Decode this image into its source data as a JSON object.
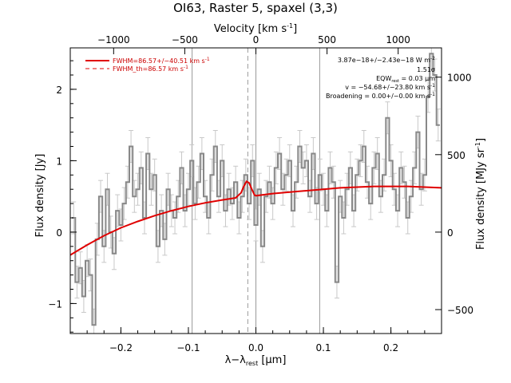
{
  "chart_data": {
    "type": "line",
    "title": "OI63, Raster 5, spaxel (3,3)",
    "xlabel_main": "λ−λ",
    "xlabel_sub": "rest",
    "xlabel_unit": " [μm]",
    "ylabel_left": "Flux density [Jy]",
    "ylabel_right": "Flux density [MJy sr",
    "ylabel_right_sup": "-1",
    "ylabel_right_end": "]",
    "top_axis_label": "Velocity [km s",
    "top_axis_label_sup": "-1",
    "top_axis_label_end": "]",
    "xlim": [
      -0.275,
      0.275
    ],
    "ylim": [
      -1.42,
      2.58
    ],
    "x_ticks": [
      -0.2,
      -0.1,
      0.0,
      0.1,
      0.2
    ],
    "x_tick_labels": [
      "−0.2",
      "−0.1",
      "0.0",
      "0.1",
      "0.2"
    ],
    "y_ticks": [
      -1,
      0,
      1,
      2
    ],
    "y_tick_labels": [
      "−1",
      "0",
      "1",
      "2"
    ],
    "top_ticks_velocity": [
      -1000,
      -500,
      0,
      500,
      1000
    ],
    "top_tick_labels": [
      "−1000",
      "−500",
      "0",
      "500",
      "1000"
    ],
    "right_ticks_mjysr": [
      -500,
      0,
      500,
      1000
    ],
    "right_tick_labels": [
      "−500",
      "0",
      "500",
      "1000"
    ],
    "vertical_lines_x": [
      -0.0945,
      0.0,
      0.0945
    ],
    "dashed_line_x": -0.012,
    "legend": [
      {
        "label": "FWHM=86.57+/−40.51 km s",
        "sup": "-1",
        "style": "solid"
      },
      {
        "label": "FWHM_th=86.57 km s",
        "sup": "-1",
        "style": "dashed"
      }
    ],
    "annotations": [
      {
        "text": "3.87e−18+/−2.43e−18 W m",
        "sup": "-2"
      },
      {
        "text": "1.51σ"
      },
      {
        "text": "EQW",
        "sub": "rest",
        "rest": " = 0.03 μm"
      },
      {
        "text": "v = −54.68+/−23.80 km s",
        "sup": "-1"
      },
      {
        "text": "Broadening = 0.00+/−0.00 km s",
        "sup": "-1"
      }
    ],
    "series": [
      {
        "type": "step",
        "color": "#888888",
        "x": [
          -0.27,
          -0.265,
          -0.26,
          -0.255,
          -0.25,
          -0.245,
          -0.24,
          -0.235,
          -0.23,
          -0.225,
          -0.22,
          -0.215,
          -0.21,
          -0.205,
          -0.2,
          -0.195,
          -0.19,
          -0.185,
          -0.18,
          -0.175,
          -0.17,
          -0.165,
          -0.16,
          -0.155,
          -0.15,
          -0.145,
          -0.14,
          -0.135,
          -0.13,
          -0.125,
          -0.12,
          -0.115,
          -0.11,
          -0.105,
          -0.1,
          -0.095,
          -0.09,
          -0.085,
          -0.08,
          -0.075,
          -0.07,
          -0.065,
          -0.06,
          -0.055,
          -0.05,
          -0.045,
          -0.04,
          -0.035,
          -0.03,
          -0.025,
          -0.02,
          -0.015,
          -0.01,
          -0.005,
          0.0,
          0.005,
          0.01,
          0.015,
          0.02,
          0.025,
          0.03,
          0.035,
          0.04,
          0.045,
          0.05,
          0.055,
          0.06,
          0.065,
          0.07,
          0.075,
          0.08,
          0.085,
          0.09,
          0.095,
          0.1,
          0.105,
          0.11,
          0.115,
          0.12,
          0.125,
          0.13,
          0.135,
          0.14,
          0.145,
          0.15,
          0.155,
          0.16,
          0.165,
          0.17,
          0.175,
          0.18,
          0.185,
          0.19,
          0.195,
          0.2,
          0.205,
          0.21,
          0.215,
          0.22,
          0.225,
          0.23,
          0.235,
          0.24,
          0.245,
          0.25,
          0.255,
          0.26,
          0.265,
          0.27
        ],
        "y": [
          0.2,
          -0.7,
          -0.5,
          -0.9,
          -0.4,
          -0.6,
          -1.3,
          -0.1,
          0.5,
          -0.2,
          0.6,
          0.0,
          -0.3,
          0.3,
          0.1,
          0.4,
          0.7,
          1.2,
          0.5,
          0.6,
          0.9,
          0.2,
          1.1,
          0.6,
          0.8,
          -0.2,
          0.3,
          -0.1,
          0.6,
          0.3,
          0.2,
          0.5,
          0.9,
          0.3,
          0.6,
          1.0,
          0.4,
          0.7,
          1.1,
          0.5,
          0.2,
          0.8,
          1.2,
          0.5,
          1.0,
          0.3,
          0.6,
          0.4,
          0.7,
          0.2,
          0.5,
          0.8,
          0.4,
          1.0,
          0.1,
          0.6,
          -0.2,
          0.5,
          0.7,
          0.4,
          0.9,
          1.1,
          0.6,
          0.8,
          1.0,
          0.3,
          0.7,
          1.2,
          0.9,
          1.0,
          0.5,
          1.1,
          0.4,
          0.8,
          0.6,
          0.3,
          0.9,
          0.7,
          -0.7,
          0.5,
          0.2,
          0.6,
          0.9,
          0.3,
          0.8,
          1.0,
          1.2,
          0.7,
          0.4,
          0.9,
          1.1,
          0.5,
          0.8,
          1.6,
          1.0,
          0.6,
          0.3,
          0.9,
          0.7,
          0.2,
          0.5,
          0.9,
          1.4,
          0.6,
          0.8,
          1.9,
          2.5,
          2.2,
          1.5
        ]
      },
      {
        "type": "line",
        "color": "#e00000",
        "x": [
          -0.275,
          -0.25,
          -0.225,
          -0.2,
          -0.175,
          -0.15,
          -0.125,
          -0.1,
          -0.075,
          -0.05,
          -0.03,
          -0.022,
          -0.018,
          -0.014,
          -0.01,
          -0.006,
          -0.002,
          0.0,
          0.025,
          0.05,
          0.075,
          0.1,
          0.125,
          0.15,
          0.175,
          0.2,
          0.225,
          0.25,
          0.275
        ],
        "y": [
          -0.32,
          -0.18,
          -0.05,
          0.06,
          0.15,
          0.23,
          0.3,
          0.36,
          0.41,
          0.45,
          0.48,
          0.55,
          0.64,
          0.71,
          0.69,
          0.6,
          0.52,
          0.51,
          0.54,
          0.56,
          0.58,
          0.6,
          0.62,
          0.63,
          0.64,
          0.64,
          0.64,
          0.63,
          0.62
        ]
      }
    ]
  }
}
